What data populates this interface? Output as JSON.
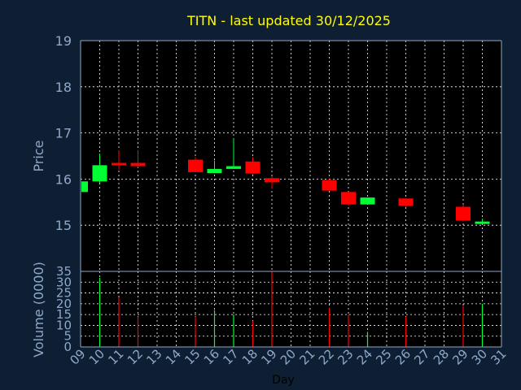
{
  "chart_data": {
    "type": "candlestick",
    "title": "TITN - last updated 30/12/2025",
    "xlabel": "Day",
    "price_panel": {
      "ylabel": "Price",
      "ylim": [
        14.0,
        19.0
      ],
      "yticks": [
        "15",
        "16",
        "17",
        "18",
        "19"
      ]
    },
    "volume_panel": {
      "ylabel": "Volume (0000)",
      "ylim": [
        0,
        35
      ],
      "yticks": [
        "0",
        "5",
        "10",
        "15",
        "20",
        "25",
        "30",
        "35"
      ]
    },
    "x_ticks": [
      "09",
      "10",
      "11",
      "12",
      "13",
      "14",
      "15",
      "16",
      "17",
      "18",
      "19",
      "20",
      "21",
      "22",
      "23",
      "24",
      "25",
      "26",
      "27",
      "28",
      "29",
      "30",
      "31"
    ],
    "x_range": [
      9,
      31
    ],
    "colors": {
      "up": "#00ff33",
      "down": "#ff0000",
      "grid": "#ffffff",
      "axis": "#8fa8c8",
      "title": "#ffff00"
    },
    "series": [
      {
        "day": 9,
        "open": 15.72,
        "high": 15.95,
        "low": 15.72,
        "close": 15.95,
        "volume": 0
      },
      {
        "day": 10,
        "open": 15.95,
        "high": 16.55,
        "low": 15.92,
        "close": 16.3,
        "volume": 32
      },
      {
        "day": 11,
        "open": 16.35,
        "high": 16.62,
        "low": 16.2,
        "close": 16.3,
        "volume": 23
      },
      {
        "day": 12,
        "open": 16.35,
        "high": 16.62,
        "low": 16.25,
        "close": 16.28,
        "volume": 14
      },
      {
        "day": 15,
        "open": 16.42,
        "high": 16.48,
        "low": 16.15,
        "close": 16.15,
        "volume": 14
      },
      {
        "day": 16,
        "open": 16.13,
        "high": 16.4,
        "low": 16.13,
        "close": 16.22,
        "volume": 17
      },
      {
        "day": 17,
        "open": 16.22,
        "high": 16.88,
        "low": 16.22,
        "close": 16.28,
        "volume": 15
      },
      {
        "day": 18,
        "open": 16.38,
        "high": 16.48,
        "low": 16.1,
        "close": 16.12,
        "volume": 12
      },
      {
        "day": 19,
        "open": 16.02,
        "high": 16.05,
        "low": 15.8,
        "close": 15.93,
        "volume": 35
      },
      {
        "day": 22,
        "open": 15.98,
        "high": 16.0,
        "low": 15.75,
        "close": 15.75,
        "volume": 18
      },
      {
        "day": 23,
        "open": 15.72,
        "high": 15.72,
        "low": 15.42,
        "close": 15.45,
        "volume": 15
      },
      {
        "day": 24,
        "open": 15.45,
        "high": 15.6,
        "low": 15.45,
        "close": 15.6,
        "volume": 7
      },
      {
        "day": 26,
        "open": 15.58,
        "high": 15.58,
        "low": 15.4,
        "close": 15.42,
        "volume": 14
      },
      {
        "day": 29,
        "open": 15.4,
        "high": 15.45,
        "low": 15.08,
        "close": 15.1,
        "volume": 19
      },
      {
        "day": 30,
        "open": 15.06,
        "high": 15.14,
        "low": 15.04,
        "close": 15.08,
        "volume": 20
      }
    ]
  }
}
